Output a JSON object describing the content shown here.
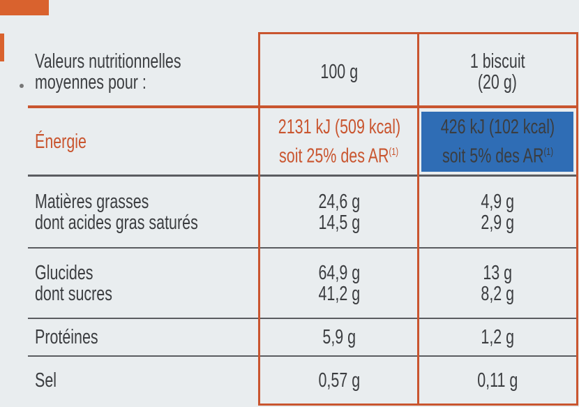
{
  "table": {
    "header": [
      [
        "Valeurs nutritionnelles",
        "moyennes pour :"
      ],
      [
        "100 g"
      ],
      [
        "1 biscuit",
        "(20 g)"
      ]
    ],
    "energy": {
      "label": "Énergie",
      "per_100g": {
        "line": "2131 kJ (509 kcal)",
        "share": "soit 25% des AR",
        "note": "(1)"
      },
      "per_portion": {
        "line": "426 kJ (102 kcal)",
        "share": "soit 5% des AR",
        "note": "(1)"
      }
    },
    "rows": [
      {
        "labels": [
          "Matières grasses",
          "dont acides gras saturés"
        ],
        "per_100g": [
          "24,6 g",
          "14,5 g"
        ],
        "per_portion": [
          "4,9 g",
          "2,9 g"
        ]
      },
      {
        "labels": [
          "Glucides",
          "dont sucres"
        ],
        "per_100g": [
          "64,9 g",
          "41,2 g"
        ],
        "per_portion": [
          "13 g",
          "8,2 g"
        ]
      },
      {
        "labels": [
          "Protéines"
        ],
        "per_100g": [
          "5,9 g"
        ],
        "per_portion": [
          "1,2 g"
        ]
      },
      {
        "labels": [
          "Sel"
        ],
        "per_100g": [
          "0,57 g"
        ],
        "per_portion": [
          "0,11 g"
        ]
      }
    ]
  }
}
